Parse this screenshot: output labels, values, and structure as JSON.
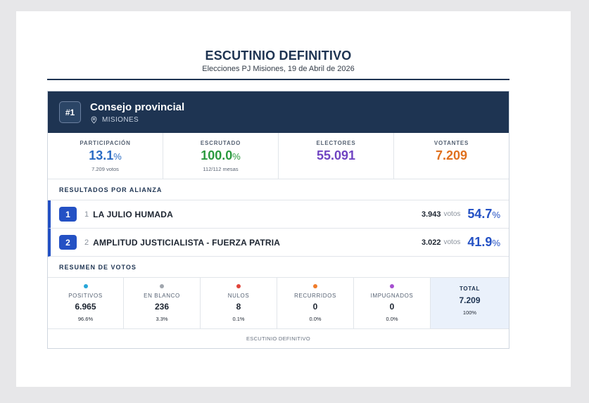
{
  "report": {
    "title": "ESCUTINIO DEFINITIVO",
    "subtitle": "Elecciones PJ Misiones, 19 de Abril de 2026"
  },
  "card": {
    "badge": "#1",
    "title": "Consejo provincial",
    "location": "MISIONES",
    "location_icon": "map-pin-icon",
    "header_color": "#1e3452"
  },
  "stats": {
    "participacion": {
      "label": "PARTICIPACIÓN",
      "value": "13.1",
      "unit": "%",
      "sub": "7.209 votos",
      "color": "#2b6cc4"
    },
    "escrutado": {
      "label": "ESCRUTADO",
      "value": "100.0",
      "unit": "%",
      "sub": "112/112 mesas",
      "color": "#2b9a3f"
    },
    "electores": {
      "label": "ELECTORES",
      "value": "55.091",
      "color": "#7044c2"
    },
    "votantes": {
      "label": "VOTANTES",
      "value": "7.209",
      "color": "#e0711f"
    }
  },
  "results": {
    "section_title": "RESULTADOS POR ALIANZA",
    "votes_unit": "votos",
    "pct_unit": "%",
    "rows": [
      {
        "rank": "1",
        "ballot": "1",
        "name": "LA JULIO HUMADA",
        "votes": "3.943",
        "pct": "54.7"
      },
      {
        "rank": "2",
        "ballot": "2",
        "name": "AMPLITUD JUSTICIALISTA - FUERZA PATRIA",
        "votes": "3.022",
        "pct": "41.9"
      }
    ]
  },
  "summary": {
    "section_title": "RESUMEN DE VOTOS",
    "items": [
      {
        "label": "POSITIVOS",
        "value": "6.965",
        "pct": "96.6%",
        "color": "#27a6d8"
      },
      {
        "label": "EN BLANCO",
        "value": "236",
        "pct": "3.3%",
        "color": "#a0a6ae"
      },
      {
        "label": "NULOS",
        "value": "8",
        "pct": "0.1%",
        "color": "#e0443a"
      },
      {
        "label": "RECURRIDOS",
        "value": "0",
        "pct": "0.0%",
        "color": "#f07c2a"
      },
      {
        "label": "IMPUGNADOS",
        "value": "0",
        "pct": "0.0%",
        "color": "#a54fd0"
      }
    ],
    "total": {
      "label": "TOTAL",
      "value": "7.209",
      "pct": "100%"
    }
  },
  "footer": "ESCUTINIO DEFINITIVO"
}
